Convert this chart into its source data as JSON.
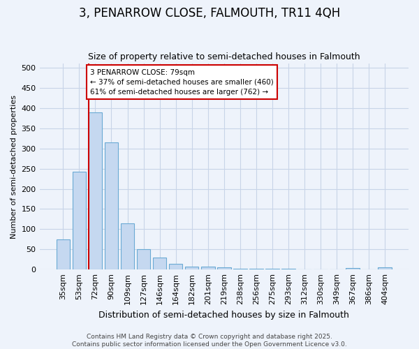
{
  "title1": "3, PENARROW CLOSE, FALMOUTH, TR11 4QH",
  "title2": "Size of property relative to semi-detached houses in Falmouth",
  "xlabel": "Distribution of semi-detached houses by size in Falmouth",
  "ylabel": "Number of semi-detached properties",
  "bar_labels": [
    "35sqm",
    "53sqm",
    "72sqm",
    "90sqm",
    "109sqm",
    "127sqm",
    "146sqm",
    "164sqm",
    "182sqm",
    "201sqm",
    "219sqm",
    "238sqm",
    "256sqm",
    "275sqm",
    "293sqm",
    "312sqm",
    "330sqm",
    "349sqm",
    "367sqm",
    "386sqm",
    "404sqm"
  ],
  "bar_values": [
    75,
    243,
    390,
    315,
    115,
    50,
    30,
    15,
    7,
    7,
    5,
    3,
    2,
    2,
    2,
    1,
    0,
    0,
    4,
    0,
    5
  ],
  "bar_color": "#c5d8f0",
  "bar_edge_color": "#6aaad4",
  "background_color": "#eef3fb",
  "plot_bg_color": "#eef3fb",
  "grid_color": "#c8d4e8",
  "vline_color": "#cc0000",
  "annotation_text": "3 PENARROW CLOSE: 79sqm\n← 37% of semi-detached houses are smaller (460)\n61% of semi-detached houses are larger (762) →",
  "annotation_box_color": "#ffffff",
  "annotation_box_edge": "#cc0000",
  "footer_text": "Contains HM Land Registry data © Crown copyright and database right 2025.\nContains public sector information licensed under the Open Government Licence v3.0.",
  "ylim": [
    0,
    510
  ],
  "yticks": [
    0,
    50,
    100,
    150,
    200,
    250,
    300,
    350,
    400,
    450,
    500
  ],
  "title1_fontsize": 12,
  "title2_fontsize": 9,
  "xlabel_fontsize": 9,
  "ylabel_fontsize": 8,
  "tick_fontsize": 8,
  "footer_fontsize": 6.5
}
